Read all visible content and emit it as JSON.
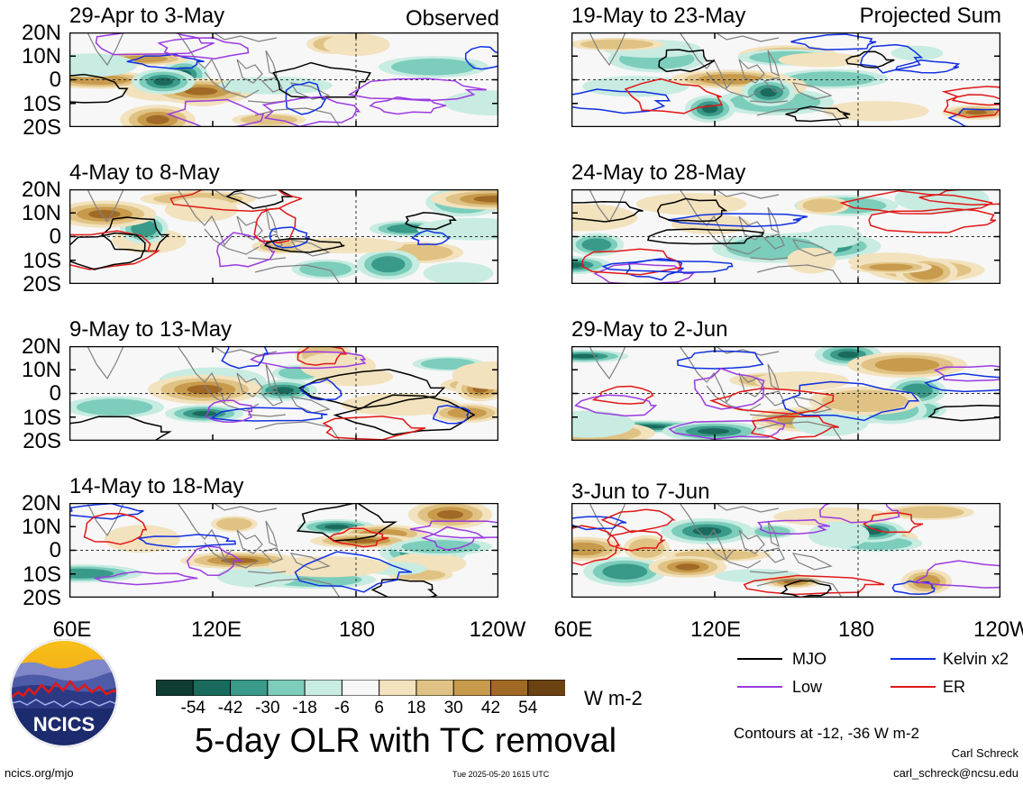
{
  "header": {
    "left_label": "Observed",
    "right_label": "Projected Sum"
  },
  "panels_left": [
    {
      "title": "29-Apr to 3-May"
    },
    {
      "title": "4-May to 8-May"
    },
    {
      "title": "9-May to 13-May"
    },
    {
      "title": "14-May to 18-May"
    }
  ],
  "panels_right": [
    {
      "title": "19-May to 23-May"
    },
    {
      "title": "24-May to 28-May"
    },
    {
      "title": "29-May to 2-Jun"
    },
    {
      "title": "3-Jun to 7-Jun"
    }
  ],
  "lat_ticks": [
    "20N",
    "10N",
    "0",
    "10S",
    "20S"
  ],
  "lon_ticks_left": [
    "60E",
    "120E",
    "180",
    "120W"
  ],
  "lon_ticks_right": [
    "60E",
    "120E",
    "180",
    "120W"
  ],
  "colorbar": {
    "labels": [
      "-54",
      "-42",
      "-30",
      "-18",
      "-6",
      "6",
      "18",
      "30",
      "42",
      "54"
    ],
    "colors": [
      "#0f3d33",
      "#1a6b5d",
      "#3a9a8a",
      "#7ccdbb",
      "#c8ece2",
      "#f7f7f7",
      "#f2e2bd",
      "#e0c384",
      "#c89a4c",
      "#a06a26",
      "#6b4212"
    ],
    "units": "W m-2"
  },
  "main_title": "5-day OLR with TC removal",
  "legend": {
    "items": [
      {
        "label": "MJO",
        "color": "#000000"
      },
      {
        "label": "Kelvin x2",
        "color": "#1030e0"
      },
      {
        "label": "Low",
        "color": "#9b3be0"
      },
      {
        "label": "ER",
        "color": "#e01818"
      }
    ],
    "contours_note": "Contours at -12, -36 W m-2"
  },
  "credits": {
    "author": "Carl Schreck",
    "email": "carl_schreck@ncsu.edu",
    "url": "ncics.org/mjo",
    "timestamp": "Tue 2025-05-20 1615 UTC",
    "logo_text": "NCICS"
  }
}
